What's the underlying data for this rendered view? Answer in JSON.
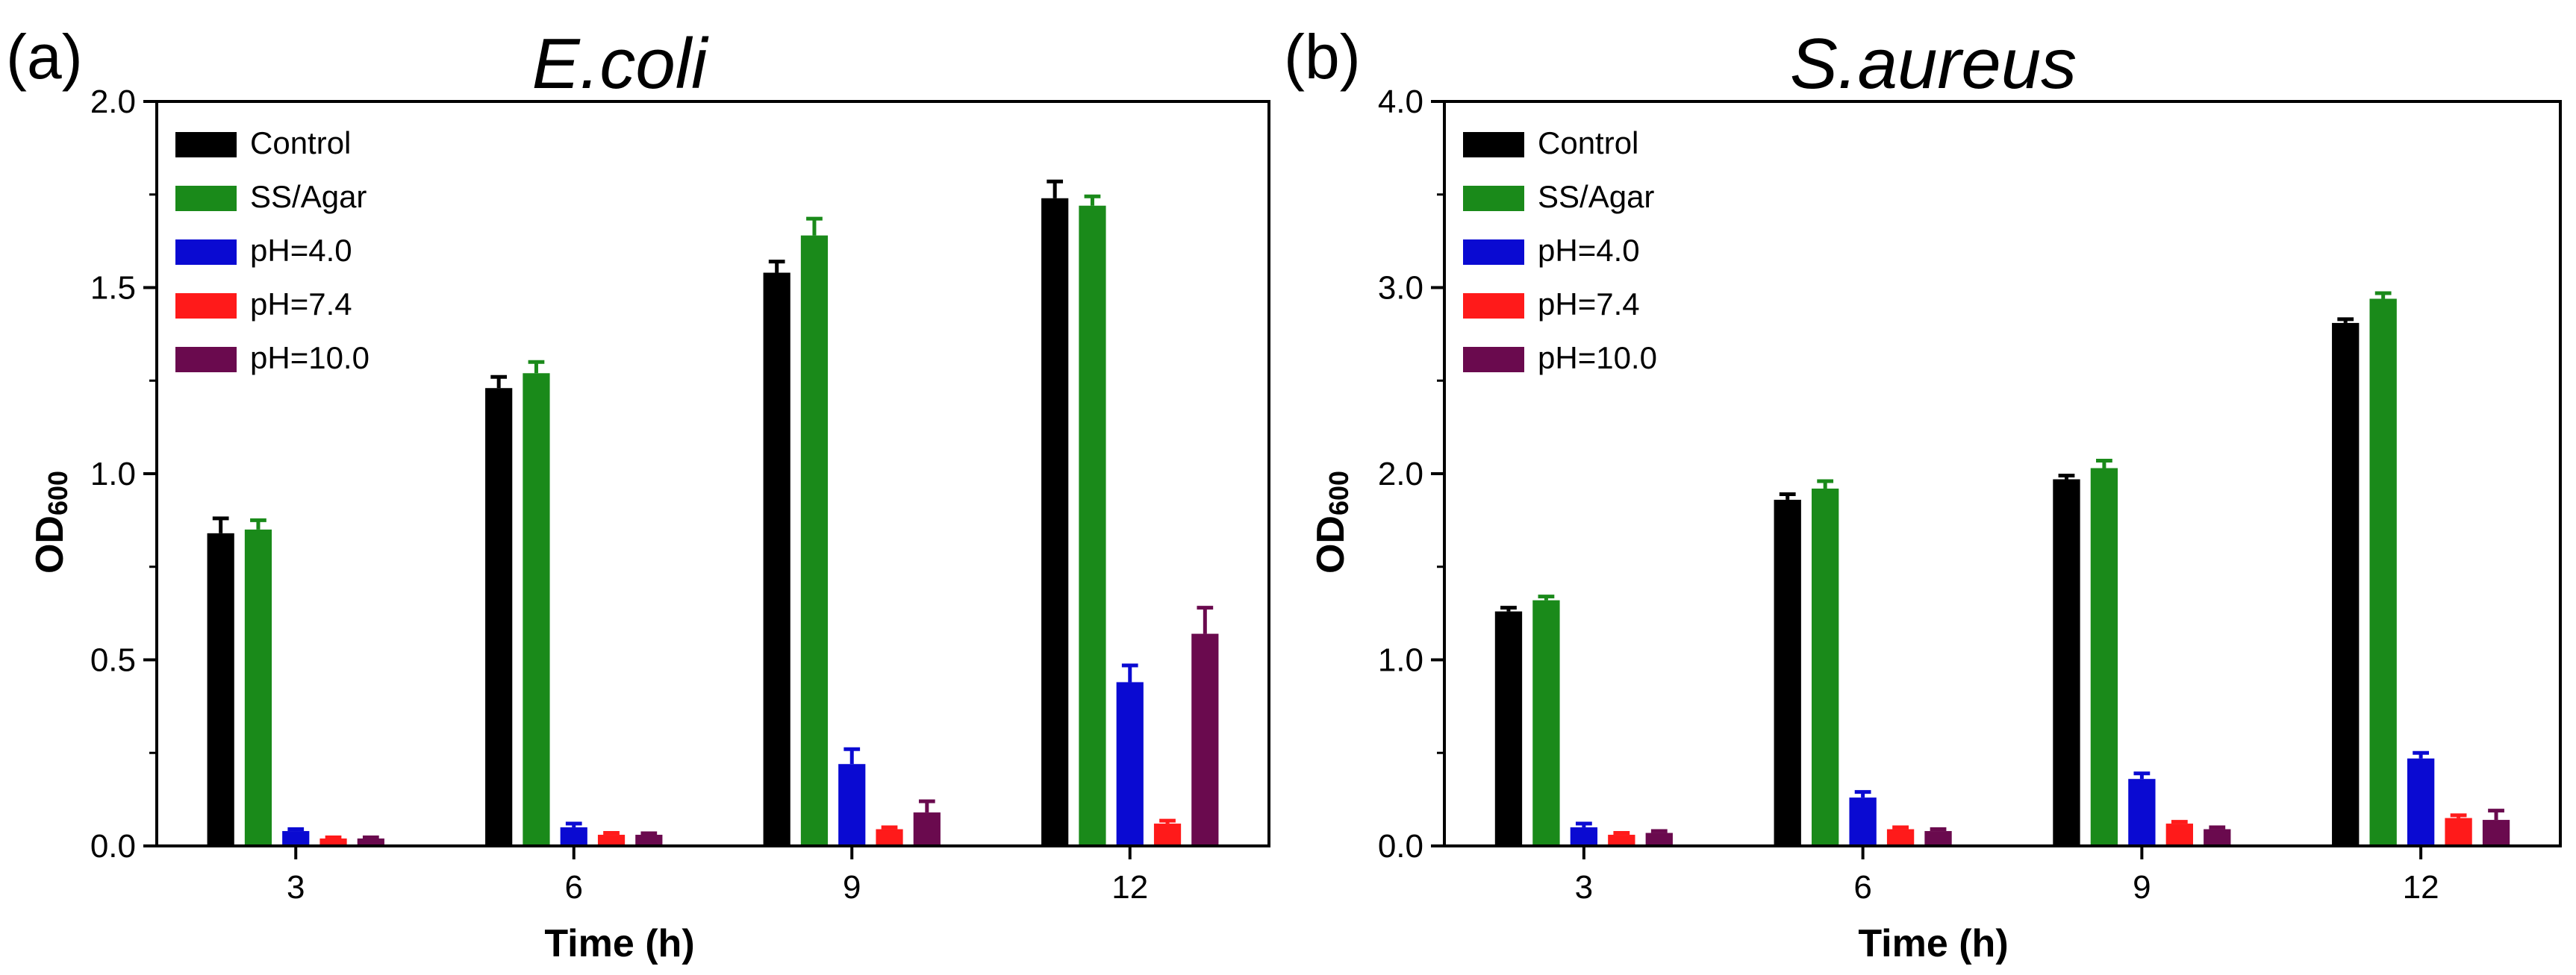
{
  "chart_data": [
    {
      "type": "bar",
      "panel": "(a)",
      "title": "E.coli",
      "xlabel": "Time (h)",
      "ylabel": "OD",
      "ylabel_sub": "600",
      "ylim": [
        0,
        2.0
      ],
      "yticks": [
        "0.0",
        "0.5",
        "1.0",
        "1.5",
        "2.0"
      ],
      "ytick_values": [
        0,
        0.5,
        1.0,
        1.5,
        2.0
      ],
      "categories": [
        "3",
        "6",
        "9",
        "12"
      ],
      "legend_position": "top-left",
      "series": [
        {
          "name": "Control",
          "color": "#000000",
          "values": [
            0.84,
            1.23,
            1.54,
            1.74
          ],
          "errors": [
            0.04,
            0.03,
            0.03,
            0.045
          ]
        },
        {
          "name": "SS/Agar",
          "color": "#1a8a1a",
          "values": [
            0.85,
            1.27,
            1.64,
            1.72
          ],
          "errors": [
            0.025,
            0.03,
            0.045,
            0.025
          ]
        },
        {
          "name": "pH=4.0",
          "color": "#0a0ad2",
          "values": [
            0.04,
            0.05,
            0.22,
            0.44
          ],
          "errors": [
            0.005,
            0.01,
            0.04,
            0.045
          ]
        },
        {
          "name": "pH=7.4",
          "color": "#ff1a1a",
          "values": [
            0.02,
            0.03,
            0.045,
            0.06
          ],
          "errors": [
            0.003,
            0.005,
            0.005,
            0.008
          ]
        },
        {
          "name": "pH=10.0",
          "color": "#6a0a4e",
          "values": [
            0.02,
            0.03,
            0.09,
            0.57
          ],
          "errors": [
            0.003,
            0.004,
            0.03,
            0.07
          ]
        }
      ]
    },
    {
      "type": "bar",
      "panel": "(b)",
      "title": "S.aureus",
      "xlabel": "Time (h)",
      "ylabel": "OD",
      "ylabel_sub": "600",
      "ylim": [
        0,
        4.0
      ],
      "yticks": [
        "0.0",
        "1.0",
        "2.0",
        "3.0",
        "4.0"
      ],
      "ytick_values": [
        0,
        1.0,
        2.0,
        3.0,
        4.0
      ],
      "categories": [
        "3",
        "6",
        "9",
        "12"
      ],
      "legend_position": "top-left",
      "series": [
        {
          "name": "Control",
          "color": "#000000",
          "values": [
            1.26,
            1.86,
            1.97,
            2.81
          ],
          "errors": [
            0.02,
            0.03,
            0.02,
            0.02
          ]
        },
        {
          "name": "SS/Agar",
          "color": "#1a8a1a",
          "values": [
            1.32,
            1.92,
            2.03,
            2.94
          ],
          "errors": [
            0.02,
            0.04,
            0.04,
            0.03
          ]
        },
        {
          "name": "pH=4.0",
          "color": "#0a0ad2",
          "values": [
            0.1,
            0.26,
            0.36,
            0.47
          ],
          "errors": [
            0.02,
            0.03,
            0.03,
            0.03
          ]
        },
        {
          "name": "pH=7.4",
          "color": "#ff1a1a",
          "values": [
            0.06,
            0.09,
            0.12,
            0.15
          ],
          "errors": [
            0.01,
            0.01,
            0.01,
            0.015
          ]
        },
        {
          "name": "pH=10.0",
          "color": "#6a0a4e",
          "values": [
            0.07,
            0.08,
            0.09,
            0.14
          ],
          "errors": [
            0.01,
            0.01,
            0.01,
            0.05
          ]
        }
      ]
    }
  ]
}
